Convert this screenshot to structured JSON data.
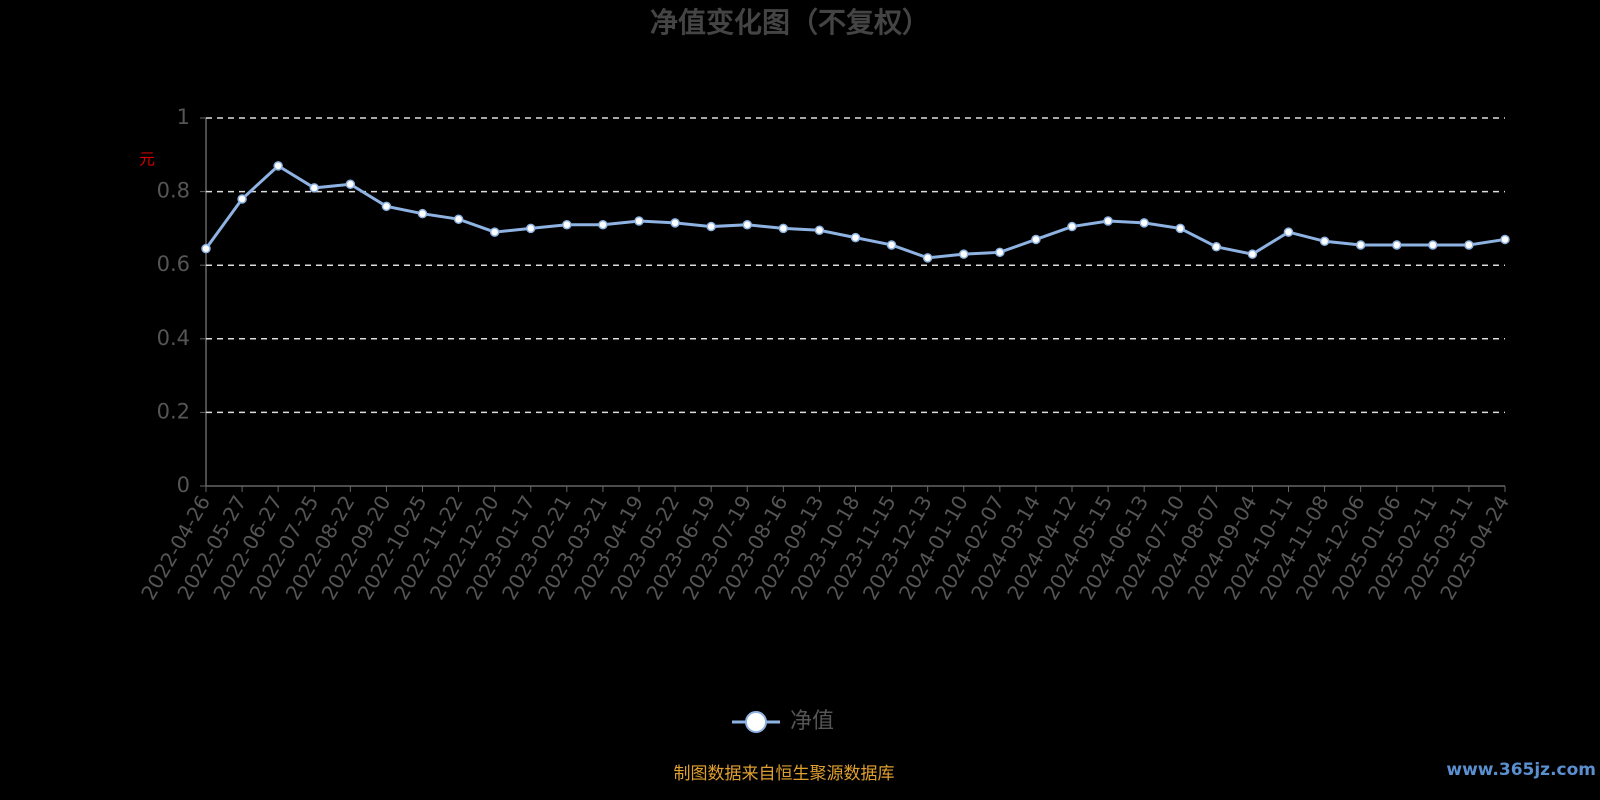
{
  "chart_data": {
    "type": "line",
    "title": "净值变化图（不复权）",
    "y_label": "元",
    "categories": [
      "2022-04-26",
      "2022-05-27",
      "2022-06-27",
      "2022-07-25",
      "2022-08-22",
      "2022-09-20",
      "2022-10-25",
      "2022-11-22",
      "2022-12-20",
      "2023-01-17",
      "2023-02-21",
      "2023-03-21",
      "2023-04-19",
      "2023-05-22",
      "2023-06-19",
      "2023-07-19",
      "2023-08-16",
      "2023-09-13",
      "2023-10-18",
      "2023-11-15",
      "2023-12-13",
      "2024-01-10",
      "2024-02-07",
      "2024-03-14",
      "2024-04-12",
      "2024-05-15",
      "2024-06-13",
      "2024-07-10",
      "2024-08-07",
      "2024-09-04",
      "2024-10-11",
      "2024-11-08",
      "2024-12-06",
      "2025-01-06",
      "2025-02-11",
      "2025-03-11",
      "2025-04-24"
    ],
    "series": [
      {
        "name": "净值",
        "color": "#8eb3e2",
        "values": [
          0.645,
          0.78,
          0.87,
          0.81,
          0.82,
          0.76,
          0.74,
          0.725,
          0.69,
          0.7,
          0.71,
          0.71,
          0.72,
          0.715,
          0.705,
          0.71,
          0.7,
          0.695,
          0.675,
          0.655,
          0.62,
          0.63,
          0.635,
          0.67,
          0.705,
          0.72,
          0.715,
          0.7,
          0.65,
          0.63,
          0.69,
          0.665,
          0.655,
          0.655,
          0.655,
          0.655,
          0.67
        ]
      }
    ],
    "ylim": [
      0,
      1
    ],
    "yticks": [
      0,
      0.2,
      0.4,
      0.6,
      0.8,
      1
    ],
    "grid": true,
    "source": "制图数据来自恒生聚源数据库",
    "watermark": "www.365jz.com"
  }
}
